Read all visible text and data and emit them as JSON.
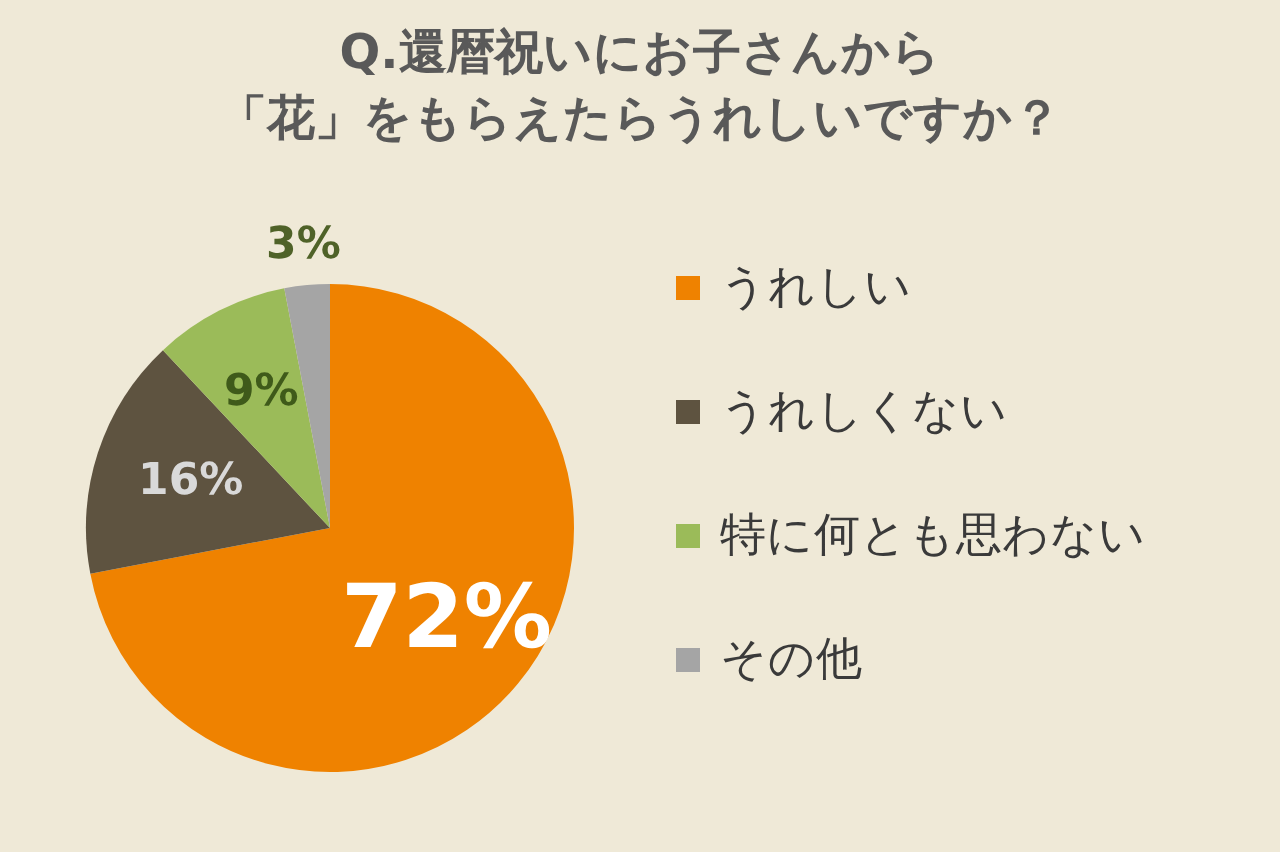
{
  "chart_data": {
    "type": "pie",
    "title": "Q.還暦祝いにお子さんから",
    "subtitle": "「花」をもらえたらうれしいですか？",
    "categories": [
      "うれしい",
      "うれしくない",
      "特に何とも思わない",
      "その他"
    ],
    "values": [
      72,
      16,
      9,
      3
    ],
    "colors": [
      "#ef8200",
      "#5e5340",
      "#9bbb59",
      "#a5a5a5"
    ],
    "value_labels": [
      "72%",
      "16%",
      "9%",
      "3%"
    ],
    "legend": "right"
  }
}
